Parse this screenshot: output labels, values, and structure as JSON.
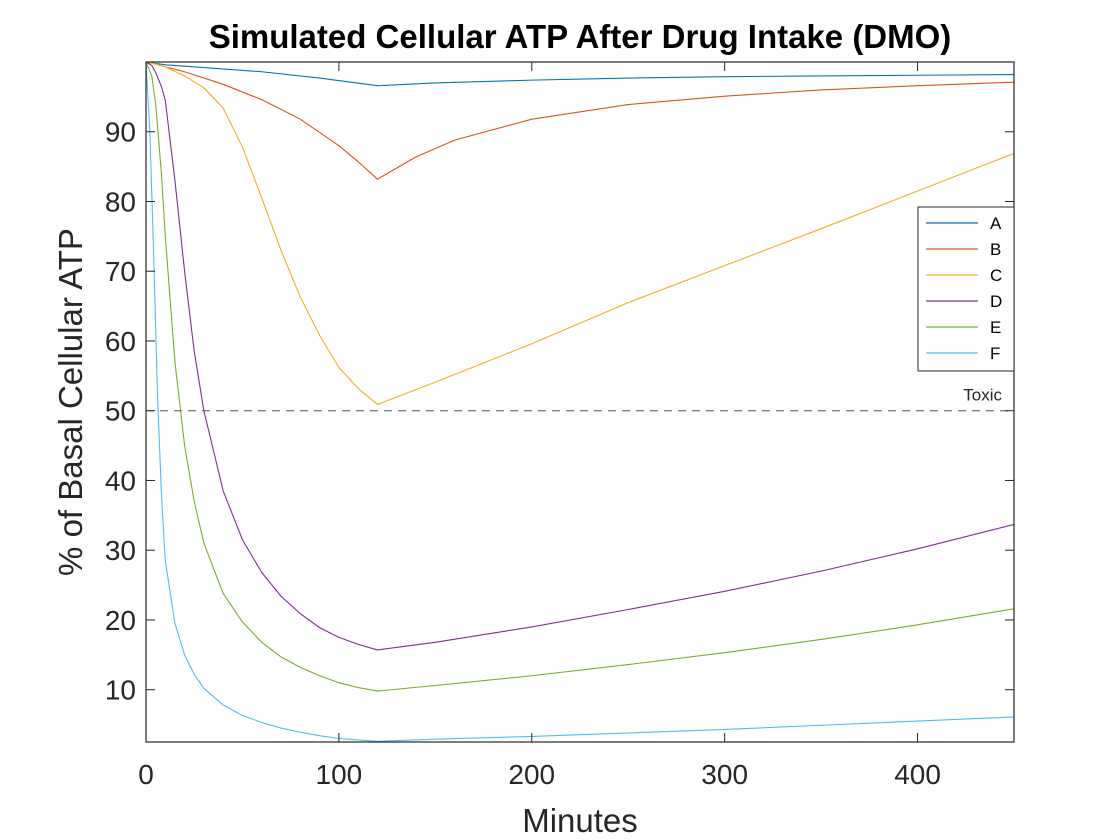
{
  "chart_data": {
    "type": "line",
    "title": "Simulated Cellular ATP After Drug Intake (DMO)",
    "xlabel": "Minutes",
    "ylabel": "% of Basal Cellular ATP",
    "xlim": [
      0,
      450
    ],
    "ylim": [
      2.5,
      100
    ],
    "xticks": [
      0,
      100,
      200,
      300,
      400
    ],
    "yticks": [
      10,
      20,
      30,
      40,
      50,
      60,
      70,
      80,
      90
    ],
    "grid": false,
    "legend_position": "right",
    "threshold": {
      "y": 50,
      "label": "Toxic",
      "style": "dashed",
      "color": "#555555"
    },
    "series": [
      {
        "name": "A",
        "color": "#0072BD",
        "x": [
          0,
          5,
          10,
          30,
          60,
          90,
          120,
          150,
          200,
          250,
          300,
          350,
          400,
          450
        ],
        "y": [
          100,
          99.8,
          99.6,
          99.2,
          98.6,
          97.7,
          96.6,
          97.0,
          97.4,
          97.7,
          97.9,
          98.0,
          98.1,
          98.2
        ]
      },
      {
        "name": "B",
        "color": "#D95319",
        "x": [
          0,
          5,
          10,
          20,
          40,
          60,
          80,
          100,
          110,
          120,
          140,
          160,
          200,
          250,
          300,
          350,
          400,
          450
        ],
        "y": [
          100,
          99.7,
          99.3,
          98.6,
          96.8,
          94.6,
          91.8,
          88.0,
          85.7,
          83.2,
          86.4,
          88.8,
          91.8,
          93.9,
          95.1,
          96.0,
          96.6,
          97.1
        ]
      },
      {
        "name": "C",
        "color": "#EDB120",
        "x": [
          0,
          5,
          10,
          20,
          30,
          40,
          50,
          60,
          70,
          80,
          90,
          100,
          110,
          120,
          150,
          200,
          250,
          300,
          350,
          400,
          450
        ],
        "y": [
          100,
          99.7,
          99.3,
          98.0,
          96.3,
          93.4,
          87.8,
          80.5,
          73.0,
          66.3,
          60.8,
          56.2,
          53.2,
          50.9,
          54.1,
          59.6,
          65.5,
          70.8,
          76.1,
          81.5,
          86.9
        ]
      },
      {
        "name": "D",
        "color": "#7E2F8E",
        "x": [
          0,
          3,
          5,
          8,
          10,
          15,
          20,
          25,
          30,
          40,
          50,
          60,
          70,
          80,
          90,
          100,
          110,
          120,
          150,
          200,
          250,
          300,
          350,
          400,
          450
        ],
        "y": [
          100,
          99.5,
          98.5,
          96.5,
          94.5,
          83.0,
          70.0,
          58.5,
          50.0,
          38.5,
          31.5,
          26.8,
          23.4,
          20.9,
          18.9,
          17.5,
          16.5,
          15.7,
          16.8,
          19.0,
          21.5,
          24.1,
          27.0,
          30.2,
          33.7
        ]
      },
      {
        "name": "E",
        "color": "#77AC30",
        "x": [
          0,
          3,
          5,
          8,
          10,
          15,
          20,
          25,
          30,
          40,
          50,
          60,
          70,
          80,
          90,
          100,
          110,
          120,
          150,
          200,
          250,
          300,
          350,
          400,
          450
        ],
        "y": [
          100,
          98.0,
          94.0,
          84.0,
          75.0,
          57.0,
          45.0,
          37.0,
          31.0,
          23.8,
          19.7,
          16.8,
          14.7,
          13.2,
          12.0,
          11.0,
          10.3,
          9.8,
          10.6,
          12.0,
          13.6,
          15.3,
          17.2,
          19.3,
          21.6
        ]
      },
      {
        "name": "F",
        "color": "#4DBEEE",
        "x": [
          0,
          2,
          4,
          6,
          8,
          10,
          15,
          20,
          25,
          30,
          40,
          50,
          60,
          70,
          80,
          90,
          100,
          110,
          120,
          150,
          200,
          250,
          300,
          350,
          400,
          450
        ],
        "y": [
          100,
          90.0,
          72.0,
          52.0,
          38.0,
          28.5,
          19.5,
          15.0,
          12.2,
          10.2,
          7.8,
          6.3,
          5.3,
          4.5,
          3.9,
          3.4,
          3.0,
          2.8,
          2.6,
          2.9,
          3.3,
          3.8,
          4.3,
          4.9,
          5.5,
          6.1
        ]
      }
    ]
  }
}
